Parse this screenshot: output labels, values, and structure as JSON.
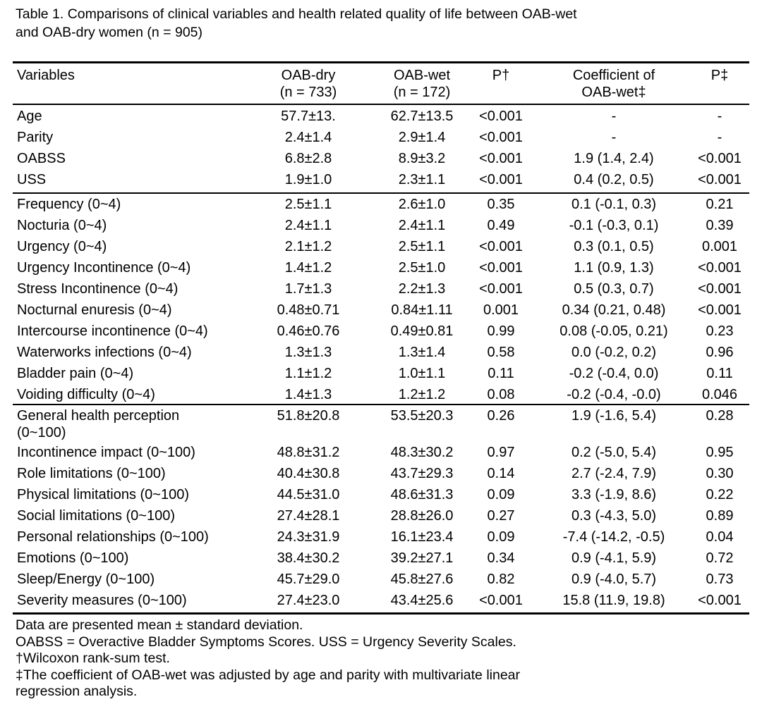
{
  "caption": {
    "line1": "Table 1. Comparisons of clinical variables and health related quality of life between OAB-wet",
    "line2": "and OAB-dry women (n = 905)"
  },
  "header": {
    "variables": "Variables",
    "dry_1": "OAB-dry",
    "dry_2": "(n = 733)",
    "wet_1": "OAB-wet",
    "wet_2": "(n = 172)",
    "p1": "P†",
    "coef_1": "Coefficient of",
    "coef_2": "OAB-wet‡",
    "p2": "P‡"
  },
  "sections": [
    {
      "rows": [
        {
          "variable": "Age",
          "dry": "57.7±13.",
          "wet": "62.7±13.5",
          "p1": "<0.001",
          "coef": "-",
          "p2": "-"
        },
        {
          "variable": "Parity",
          "dry": "2.4±1.4",
          "wet": "2.9±1.4",
          "p1": "<0.001",
          "coef": "-",
          "p2": "-"
        },
        {
          "variable": "OABSS",
          "dry": "6.8±2.8",
          "wet": "8.9±3.2",
          "p1": "<0.001",
          "coef": "1.9 (1.4, 2.4)",
          "p2": "<0.001"
        },
        {
          "variable": "USS",
          "dry": "1.9±1.0",
          "wet": "2.3±1.1",
          "p1": "<0.001",
          "coef": "0.4 (0.2, 0.5)",
          "p2": "<0.001"
        }
      ]
    },
    {
      "rows": [
        {
          "variable": "Frequency (0~4)",
          "dry": "2.5±1.1",
          "wet": "2.6±1.0",
          "p1": "0.35",
          "coef": "0.1 (-0.1, 0.3)",
          "p2": "0.21"
        },
        {
          "variable": "Nocturia (0~4)",
          "dry": "2.4±1.1",
          "wet": "2.4±1.1",
          "p1": "0.49",
          "coef": "-0.1 (-0.3, 0.1)",
          "p2": "0.39"
        },
        {
          "variable": "Urgency (0~4)",
          "dry": "2.1±1.2",
          "wet": "2.5±1.1",
          "p1": "<0.001",
          "coef": "0.3 (0.1, 0.5)",
          "p2": "0.001"
        },
        {
          "variable": "Urgency Incontinence (0~4)",
          "dry": "1.4±1.2",
          "wet": "2.5±1.0",
          "p1": "<0.001",
          "coef": "1.1 (0.9, 1.3)",
          "p2": "<0.001"
        },
        {
          "variable": "Stress Incontinence (0~4)",
          "dry": "1.7±1.3",
          "wet": "2.2±1.3",
          "p1": "<0.001",
          "coef": "0.5 (0.3, 0.7)",
          "p2": "<0.001"
        },
        {
          "variable": "Nocturnal enuresis (0~4)",
          "dry": "0.48±0.71",
          "wet": "0.84±1.11",
          "p1": "0.001",
          "coef": "0.34 (0.21, 0.48)",
          "p2": "<0.001"
        },
        {
          "variable": "Intercourse incontinence (0~4)",
          "dry": "0.46±0.76",
          "wet": "0.49±0.81",
          "p1": "0.99",
          "coef": "0.08 (-0.05, 0.21)",
          "p2": "0.23"
        },
        {
          "variable": "Waterworks infections (0~4)",
          "dry": "1.3±1.3",
          "wet": "1.3±1.4",
          "p1": "0.58",
          "coef": "0.0 (-0.2, 0.2)",
          "p2": "0.96"
        },
        {
          "variable": "Bladder pain (0~4)",
          "dry": "1.1±1.2",
          "wet": "1.0±1.1",
          "p1": "0.11",
          "coef": "-0.2 (-0.4, 0.0)",
          "p2": "0.11"
        },
        {
          "variable": "Voiding difficulty (0~4)",
          "dry": "1.4±1.3",
          "wet": "1.2±1.2",
          "p1": "0.08",
          "coef": "-0.2 (-0.4, -0.0)",
          "p2": "0.046"
        }
      ]
    },
    {
      "rows": [
        {
          "variable": "General health perception",
          "variable_2": "(0~100)",
          "dry": "51.8±20.8",
          "wet": "53.5±20.3",
          "p1": "0.26",
          "coef": "1.9 (-1.6, 5.4)",
          "p2": "0.28"
        },
        {
          "variable": "Incontinence impact (0~100)",
          "dry": "48.8±31.2",
          "wet": "48.3±30.2",
          "p1": "0.97",
          "coef": "0.2 (-5.0, 5.4)",
          "p2": "0.95"
        },
        {
          "variable": "Role limitations (0~100)",
          "dry": "40.4±30.8",
          "wet": "43.7±29.3",
          "p1": "0.14",
          "coef": "2.7 (-2.4, 7.9)",
          "p2": "0.30"
        },
        {
          "variable": "Physical limitations (0~100)",
          "dry": "44.5±31.0",
          "wet": "48.6±31.3",
          "p1": "0.09",
          "coef": "3.3 (-1.9, 8.6)",
          "p2": "0.22"
        },
        {
          "variable": "Social limitations (0~100)",
          "dry": "27.4±28.1",
          "wet": "28.8±26.0",
          "p1": "0.27",
          "coef": "0.3 (-4.3, 5.0)",
          "p2": "0.89"
        },
        {
          "variable": "Personal relationships (0~100)",
          "dry": "24.3±31.9",
          "wet": "16.1±23.4",
          "p1": "0.09",
          "coef": "-7.4 (-14.2, -0.5)",
          "p2": "0.04"
        },
        {
          "variable": "Emotions (0~100)",
          "dry": "38.4±30.2",
          "wet": "39.2±27.1",
          "p1": "0.34",
          "coef": "0.9 (-4.1, 5.9)",
          "p2": "0.72"
        },
        {
          "variable": "Sleep/Energy (0~100)",
          "dry": "45.7±29.0",
          "wet": "45.8±27.6",
          "p1": "0.82",
          "coef": "0.9 (-4.0, 5.7)",
          "p2": "0.73"
        },
        {
          "variable": "Severity measures (0~100)",
          "dry": "27.4±23.0",
          "wet": "43.4±25.6",
          "p1": "<0.001",
          "coef": "15.8 (11.9, 19.8)",
          "p2": "<0.001"
        }
      ]
    }
  ],
  "notes": [
    "Data are presented mean ± standard deviation.",
    "OABSS = Overactive Bladder Symptoms Scores. USS = Urgency Severity Scales.",
    "†Wilcoxon rank-sum test.",
    "‡The coefficient of OAB-wet was adjusted by age and parity with multivariate linear",
    "regression analysis."
  ]
}
